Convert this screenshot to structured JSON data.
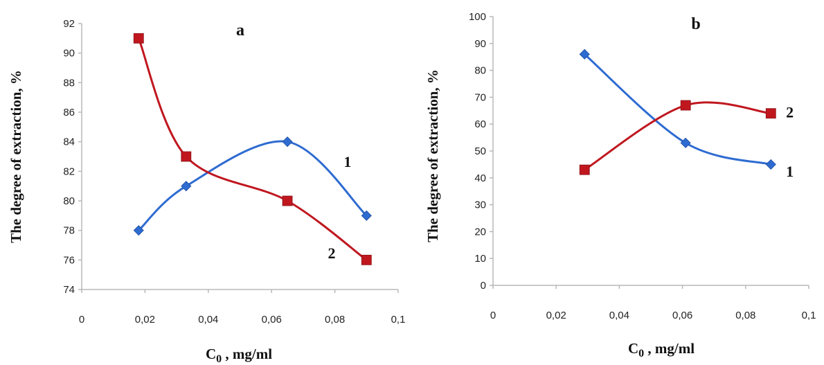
{
  "colors": {
    "series1": "#2e6bd1",
    "series2": "#c0171f",
    "axis": "#b8b8b8"
  },
  "chart_data": [
    {
      "type": "line",
      "panel_label": "a",
      "ylabel": "The degree of extraction, %",
      "xlabel_main": "C",
      "xlabel_sub": "0",
      "xlabel_rest": " , mg/ml",
      "xlim": [
        0,
        0.1
      ],
      "ylim": [
        74,
        92
      ],
      "x_ticks": [
        0,
        0.02,
        0.04,
        0.06,
        0.08,
        0.1
      ],
      "x_tick_labels": [
        "0",
        "0,02",
        "0,04",
        "0,06",
        "0,08",
        "0,1"
      ],
      "y_ticks": [
        74,
        76,
        78,
        80,
        82,
        84,
        86,
        88,
        90,
        92
      ],
      "y_tick_labels": [
        "74",
        "76",
        "78",
        "80",
        "82",
        "84",
        "86",
        "88",
        "90",
        "92"
      ],
      "series": [
        {
          "name": "1",
          "marker": "diamond",
          "color": "#2e6bd1",
          "x": [
            0.018,
            0.033,
            0.065,
            0.09
          ],
          "y": [
            78,
            81,
            84,
            79
          ]
        },
        {
          "name": "2",
          "marker": "square",
          "color": "#c0171f",
          "x": [
            0.018,
            0.033,
            0.065,
            0.09
          ],
          "y": [
            91,
            83,
            80,
            76
          ]
        }
      ],
      "series_label_pos": [
        {
          "x": 0.084,
          "y": 82.3
        },
        {
          "x": 0.079,
          "y": 76.1
        }
      ]
    },
    {
      "type": "line",
      "panel_label": "b",
      "ylabel": "The degree of extraction, %",
      "xlabel_main": "C",
      "xlabel_sub": "0",
      "xlabel_rest": " , mg/ml",
      "xlim": [
        0,
        0.1
      ],
      "ylim": [
        0,
        100
      ],
      "x_ticks": [
        0,
        0.02,
        0.04,
        0.06,
        0.08,
        0.1
      ],
      "x_tick_labels": [
        "0",
        "0,02",
        "0,04",
        "0,06",
        "0,08",
        "0,1"
      ],
      "y_ticks": [
        0,
        10,
        20,
        30,
        40,
        50,
        60,
        70,
        80,
        90,
        100
      ],
      "y_tick_labels": [
        "0",
        "10",
        "20",
        "30",
        "40",
        "50",
        "60",
        "70",
        "80",
        "90",
        "100"
      ],
      "series": [
        {
          "name": "1",
          "marker": "diamond",
          "color": "#2e6bd1",
          "x": [
            0.029,
            0.061,
            0.088
          ],
          "y": [
            86,
            53,
            45
          ]
        },
        {
          "name": "2",
          "marker": "square",
          "color": "#c0171f",
          "x": [
            0.029,
            0.061,
            0.088
          ],
          "y": [
            43,
            67,
            64
          ]
        }
      ],
      "series_label_pos": [
        {
          "x": 0.094,
          "y": 40.5
        },
        {
          "x": 0.094,
          "y": 62.5
        }
      ]
    }
  ]
}
